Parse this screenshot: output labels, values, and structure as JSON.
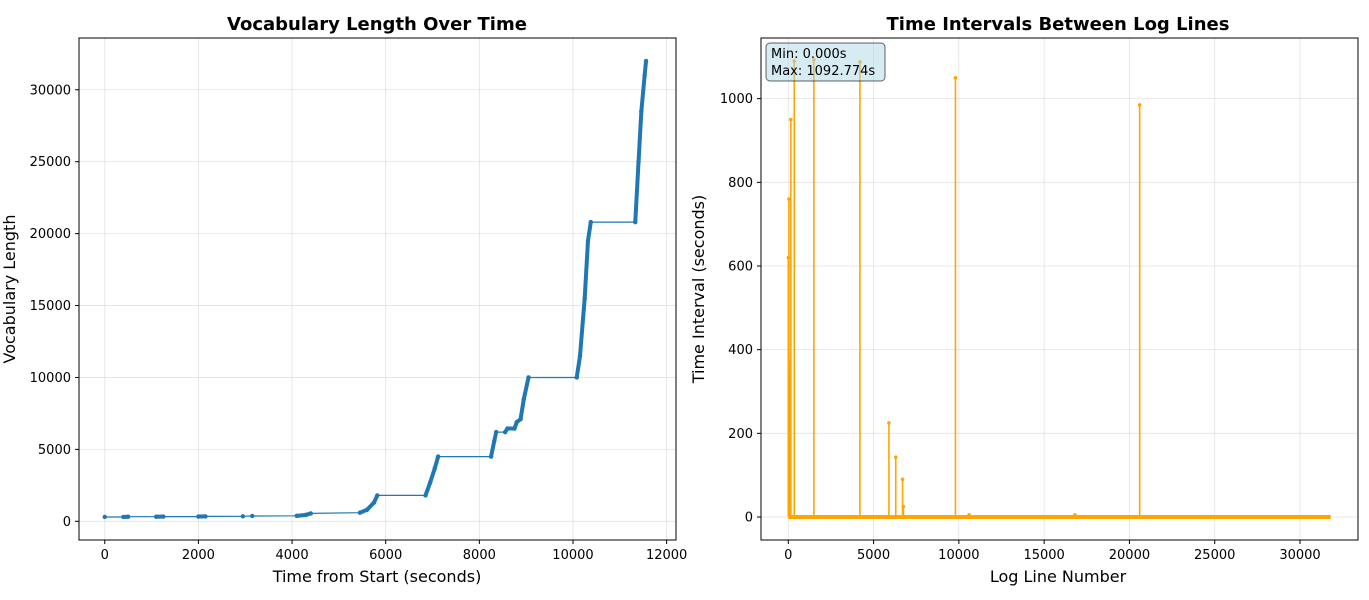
{
  "chart_data": [
    {
      "type": "line",
      "title": "Vocabulary Length Over Time",
      "xlabel": "Time from Start (seconds)",
      "ylabel": "Vocabulary Length",
      "xlim": [
        -550,
        12200
      ],
      "ylim": [
        -1300,
        33600
      ],
      "xticks": [
        0,
        2000,
        4000,
        6000,
        8000,
        10000,
        12000
      ],
      "yticks": [
        0,
        5000,
        10000,
        15000,
        20000,
        25000,
        30000
      ],
      "grid": true,
      "color": "#1f77b4",
      "series": [
        {
          "x": [
            0,
            400,
            500,
            1100,
            1250,
            2000,
            2150,
            2950,
            3150,
            4100,
            4300,
            4400,
            5450,
            5600,
            5750,
            5820,
            6850,
            6950,
            7050,
            7120,
            8250,
            8320,
            8360,
            8550,
            8600,
            8750,
            8800,
            8880,
            8950,
            9050,
            10080,
            10150,
            10250,
            10320,
            10380,
            11330,
            11400,
            11460,
            11530,
            11560
          ],
          "y": [
            300,
            300,
            320,
            320,
            330,
            330,
            340,
            350,
            370,
            380,
            450,
            550,
            600,
            800,
            1300,
            1800,
            1800,
            2700,
            3700,
            4500,
            4500,
            5600,
            6200,
            6200,
            6450,
            6450,
            6900,
            7100,
            8500,
            10000,
            10000,
            11500,
            15500,
            19500,
            20800,
            20800,
            25000,
            28500,
            31000,
            32000
          ]
        }
      ]
    },
    {
      "type": "line",
      "title": "Time Intervals Between Log Lines",
      "xlabel": "Log Line Number",
      "ylabel": "Time Interval (seconds)",
      "xlim": [
        -1600,
        33400
      ],
      "ylim": [
        -55,
        1145
      ],
      "xticks": [
        0,
        5000,
        10000,
        15000,
        20000,
        25000,
        30000
      ],
      "yticks": [
        0,
        200,
        400,
        600,
        800,
        1000
      ],
      "grid": true,
      "color": "#ffa500",
      "annotation": {
        "min_text": "Min: 0.000s",
        "max_text": "Max: 1092.774s"
      },
      "spikes": [
        {
          "x": 0,
          "y": 620
        },
        {
          "x": 40,
          "y": 760
        },
        {
          "x": 80,
          "y": 370
        },
        {
          "x": 150,
          "y": 950
        },
        {
          "x": 350,
          "y": 1090
        },
        {
          "x": 1500,
          "y": 1092.774
        },
        {
          "x": 4200,
          "y": 1088
        },
        {
          "x": 5900,
          "y": 225
        },
        {
          "x": 6300,
          "y": 143
        },
        {
          "x": 6700,
          "y": 90
        },
        {
          "x": 6750,
          "y": 25
        },
        {
          "x": 9800,
          "y": 1050
        },
        {
          "x": 10600,
          "y": 5
        },
        {
          "x": 16800,
          "y": 5
        },
        {
          "x": 20600,
          "y": 985
        }
      ],
      "baseline_range": [
        0,
        31800
      ]
    }
  ]
}
